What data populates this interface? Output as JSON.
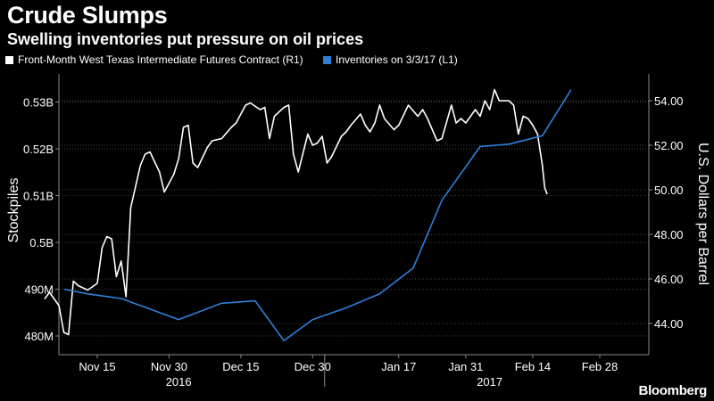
{
  "title": "Crude Slumps",
  "subtitle": "Swelling inventories put pressure on oil prices",
  "brand": "Bloomberg",
  "colors": {
    "price": "#ffffff",
    "inventories": "#2f7fd8",
    "grid": "#5a5a5a",
    "background": "#000000"
  },
  "chart_data": {
    "type": "line",
    "title": "Crude Slumps",
    "subtitle": "Swelling inventories put pressure on oil prices",
    "x_range": [
      0,
      116
    ],
    "xticks": [
      {
        "x": 11,
        "label": "Nov 15"
      },
      {
        "x": 26,
        "label": "Nov 30"
      },
      {
        "x": 41,
        "label": "Dec 15"
      },
      {
        "x": 56,
        "label": "Dec 30"
      },
      {
        "x": 74,
        "label": "Jan 17"
      },
      {
        "x": 88,
        "label": "Jan 31"
      },
      {
        "x": 102,
        "label": "Feb 14"
      },
      {
        "x": 116,
        "label": "Feb 28"
      }
    ],
    "year_labels": [
      {
        "x": 28,
        "label": "2016"
      },
      {
        "x": 93,
        "label": "2017"
      }
    ],
    "year_divider_x": 58.5,
    "left_axis": {
      "label": "Stockpiles",
      "range": [
        476000000,
        536000000
      ],
      "ticks": [
        {
          "value": 480000000,
          "label": "480M"
        },
        {
          "value": 490000000,
          "label": "490M"
        },
        {
          "value": 500000000,
          "label": "0.5B"
        },
        {
          "value": 510000000,
          "label": "0.51B"
        },
        {
          "value": 520000000,
          "label": "0.52B"
        },
        {
          "value": 530000000,
          "label": "0.53B"
        }
      ]
    },
    "right_axis": {
      "label": "U.S. Dollars per Barrel",
      "range": [
        42.6,
        55.2
      ],
      "ticks": [
        {
          "value": 44,
          "label": "44.00"
        },
        {
          "value": 46,
          "label": "46.00"
        },
        {
          "value": 48,
          "label": "48.00"
        },
        {
          "value": 50,
          "label": "50.00"
        },
        {
          "value": 52,
          "label": "52.00"
        },
        {
          "value": 54,
          "label": "54.00"
        }
      ]
    },
    "series": [
      {
        "name": "Front-Month West Texas Intermediate Futures Contract (R1)",
        "axis": "right",
        "color": "#ffffff",
        "points": [
          [
            0,
            45.1
          ],
          [
            1,
            45.4
          ],
          [
            3,
            44.8
          ],
          [
            4,
            43.6
          ],
          [
            5,
            43.5
          ],
          [
            6,
            45.9
          ],
          [
            7,
            45.7
          ],
          [
            9,
            45.5
          ],
          [
            11,
            45.8
          ],
          [
            12,
            47.4
          ],
          [
            13,
            47.9
          ],
          [
            14,
            47.8
          ],
          [
            15,
            46.1
          ],
          [
            16,
            46.8
          ],
          [
            17,
            45.2
          ],
          [
            18,
            49.2
          ],
          [
            20,
            51.1
          ],
          [
            21,
            51.6
          ],
          [
            22,
            51.7
          ],
          [
            24,
            50.8
          ],
          [
            25,
            49.9
          ],
          [
            27,
            50.7
          ],
          [
            28,
            51.4
          ],
          [
            29,
            52.8
          ],
          [
            30,
            52.9
          ],
          [
            31,
            51.2
          ],
          [
            32,
            51.0
          ],
          [
            34,
            51.9
          ],
          [
            35,
            52.2
          ],
          [
            37,
            52.3
          ],
          [
            39,
            52.8
          ],
          [
            40,
            53.0
          ],
          [
            42,
            53.8
          ],
          [
            43,
            53.9
          ],
          [
            45,
            53.6
          ],
          [
            46,
            53.7
          ],
          [
            47,
            52.3
          ],
          [
            48,
            53.3
          ],
          [
            50,
            53.7
          ],
          [
            51,
            53.8
          ],
          [
            52,
            51.6
          ],
          [
            53,
            50.8
          ],
          [
            55,
            52.5
          ],
          [
            56,
            52.0
          ],
          [
            57,
            52.1
          ],
          [
            58,
            52.4
          ],
          [
            59,
            51.2
          ],
          [
            60,
            51.5
          ],
          [
            62,
            52.4
          ],
          [
            63,
            52.6
          ],
          [
            64,
            52.9
          ],
          [
            66,
            53.4
          ],
          [
            67,
            52.9
          ],
          [
            68,
            52.6
          ],
          [
            69,
            53.0
          ],
          [
            70,
            53.8
          ],
          [
            71,
            53.2
          ],
          [
            73,
            52.7
          ],
          [
            74,
            52.9
          ],
          [
            76,
            53.8
          ],
          [
            78,
            53.3
          ],
          [
            79,
            53.6
          ],
          [
            80,
            53.2
          ],
          [
            82,
            52.2
          ],
          [
            83,
            52.3
          ],
          [
            85,
            53.8
          ],
          [
            86,
            53.0
          ],
          [
            87,
            53.2
          ],
          [
            88,
            53.0
          ],
          [
            90,
            53.6
          ],
          [
            91,
            53.3
          ],
          [
            92,
            54.0
          ],
          [
            93,
            53.6
          ],
          [
            94,
            54.5
          ],
          [
            95,
            54.0
          ],
          [
            97,
            54.0
          ],
          [
            98,
            53.8
          ],
          [
            99,
            52.5
          ],
          [
            100,
            53.3
          ],
          [
            101,
            53.2
          ],
          [
            102,
            52.9
          ],
          [
            103,
            52.5
          ],
          [
            104,
            51.1
          ],
          [
            104.5,
            50.1
          ],
          [
            105,
            49.8
          ]
        ]
      },
      {
        "name": "Inventories on 3/3/17 (L1)",
        "axis": "left",
        "color": "#2f7fd8",
        "points": [
          [
            4,
            490000000
          ],
          [
            9,
            489000000
          ],
          [
            16,
            488000000
          ],
          [
            28,
            483500000
          ],
          [
            37,
            487000000
          ],
          [
            44,
            487500000
          ],
          [
            50,
            479000000
          ],
          [
            56,
            483500000
          ],
          [
            63,
            486000000
          ],
          [
            70,
            489000000
          ],
          [
            77,
            494500000
          ],
          [
            83,
            509000000
          ],
          [
            91,
            520500000
          ],
          [
            97,
            521000000
          ],
          [
            104,
            522800000
          ],
          [
            110,
            532600000
          ]
        ]
      }
    ]
  }
}
